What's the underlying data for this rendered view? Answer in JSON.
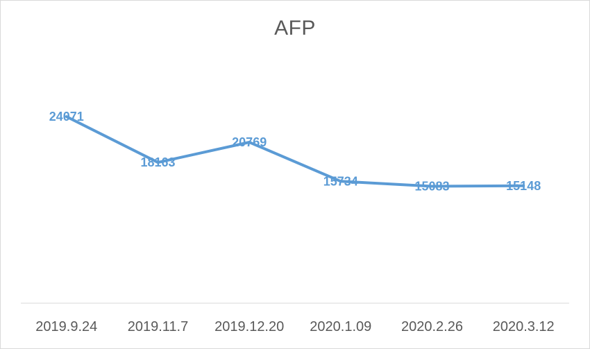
{
  "chart_data": {
    "type": "line",
    "title": "AFP",
    "categories": [
      "2019.9.24",
      "2019.11.7",
      "2019.12.20",
      "2020.1.09",
      "2020.2.26",
      "2020.3.12"
    ],
    "series": [
      {
        "values": [
          24071,
          18163,
          20769,
          15734,
          15083,
          15148
        ],
        "color": "#5b9bd5"
      }
    ],
    "data_labels": [
      "24071",
      "18163",
      "20769",
      "15734",
      "15083",
      "15148"
    ],
    "ylim": [
      0,
      30000
    ],
    "grid": false,
    "legend": "none",
    "colors": {
      "line": "#5b9bd5",
      "axis": "#d9d9d9",
      "text": "#595959"
    }
  }
}
